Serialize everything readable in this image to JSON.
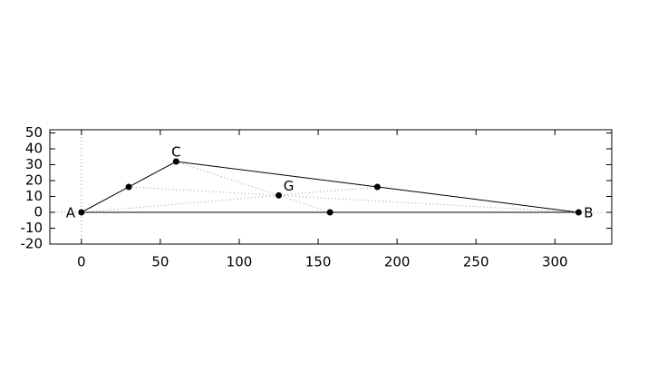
{
  "chart_data": {
    "type": "scatter",
    "xlim": [
      -20,
      336
    ],
    "ylim": [
      -20,
      52
    ],
    "xticks": [
      0,
      50,
      100,
      150,
      200,
      250,
      300
    ],
    "yticks": [
      -20,
      -10,
      0,
      10,
      20,
      30,
      40,
      50
    ],
    "zeroaxis": true,
    "series": [
      {
        "style": "solid",
        "color": "#000000",
        "x": [
          0,
          315,
          60,
          0
        ],
        "y": [
          0,
          0,
          32,
          0
        ]
      },
      {
        "style": "dotted",
        "color": "#999999",
        "x": [
          0,
          187.5
        ],
        "y": [
          0,
          16
        ]
      },
      {
        "style": "dotted",
        "color": "#999999",
        "x": [
          315,
          30
        ],
        "y": [
          0,
          16
        ]
      },
      {
        "style": "dotted",
        "color": "#999999",
        "x": [
          60,
          157.5
        ],
        "y": [
          32,
          0
        ]
      }
    ],
    "points": {
      "color": "#000000",
      "x": [
        0,
        315,
        60,
        30,
        187.5,
        157.5,
        125
      ],
      "y": [
        0,
        0,
        32,
        16,
        16,
        0,
        10.67
      ],
      "labels": [
        "A",
        "B",
        "C",
        null,
        null,
        null,
        "G"
      ]
    }
  }
}
